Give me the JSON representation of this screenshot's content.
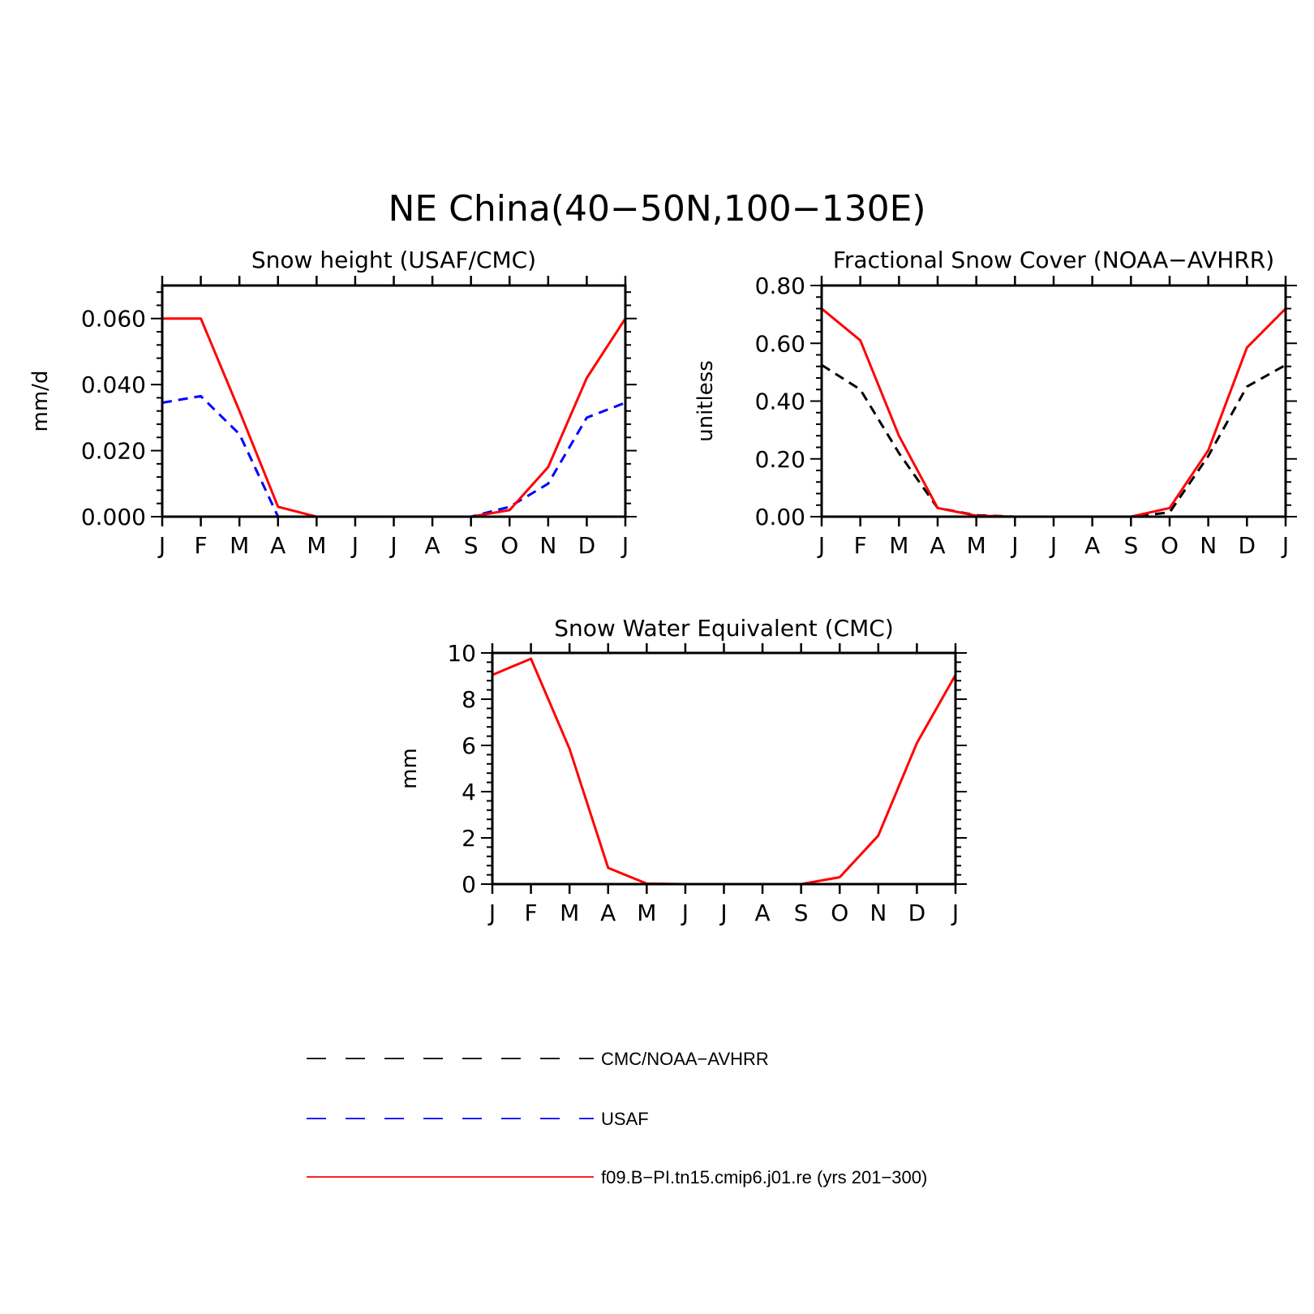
{
  "figure": {
    "title": "NE China(40−50N,100−130E)"
  },
  "legend": {
    "items": [
      {
        "label": "CMC/NOAA−AVHRR",
        "color": "#000000",
        "style": "dashed-long"
      },
      {
        "label": "USAF",
        "color": "#0000ff",
        "style": "dashed-long"
      },
      {
        "label": "f09.B−PI.tn15.cmip6.j01.re (yrs 201−300)",
        "color": "#ff0000",
        "style": "solid"
      }
    ]
  },
  "chart_data": [
    {
      "type": "line",
      "title": "Snow height (USAF/CMC)",
      "ylabel": "mm/d",
      "xlabel": "",
      "categories": [
        "J",
        "F",
        "M",
        "A",
        "M",
        "J",
        "J",
        "A",
        "S",
        "O",
        "N",
        "D",
        "J"
      ],
      "ylim": [
        0,
        0.07
      ],
      "yticks": [
        0,
        0.02,
        0.04,
        0.06
      ],
      "ytick_labels": [
        "0.000",
        "0.020",
        "0.040",
        "0.060"
      ],
      "grid": false,
      "series": [
        {
          "name": "CMC/NOAA−AVHRR",
          "color": "#000000",
          "dash": "dashed",
          "values": [
            0,
            0,
            0,
            0,
            0,
            0,
            0,
            0,
            0,
            0,
            0,
            0,
            0
          ]
        },
        {
          "name": "USAF",
          "color": "#0000ff",
          "dash": "dashed",
          "values": [
            0.0345,
            0.0365,
            0.025,
            0.0,
            0.0,
            0.0,
            0.0,
            0.0,
            0.0,
            0.003,
            0.01,
            0.03,
            0.0345
          ]
        },
        {
          "name": "f09.B−PI.tn15.cmip6.j01.re (yrs 201−300)",
          "color": "#ff0000",
          "dash": "solid",
          "values": [
            0.06,
            0.06,
            0.032,
            0.003,
            0.0,
            0.0,
            0.0,
            0.0,
            0.0,
            0.002,
            0.015,
            0.042,
            0.06
          ]
        }
      ]
    },
    {
      "type": "line",
      "title": "Fractional Snow Cover (NOAA−AVHRR)",
      "ylabel": "unitless",
      "xlabel": "",
      "categories": [
        "J",
        "F",
        "M",
        "A",
        "M",
        "J",
        "J",
        "A",
        "S",
        "O",
        "N",
        "D",
        "J"
      ],
      "ylim": [
        0,
        0.8
      ],
      "yticks": [
        0,
        0.2,
        0.4,
        0.6,
        0.8
      ],
      "ytick_labels": [
        "0.00",
        "0.20",
        "0.40",
        "0.60",
        "0.80"
      ],
      "grid": false,
      "series": [
        {
          "name": "CMC/NOAA−AVHRR",
          "color": "#000000",
          "dash": "dashed",
          "values": [
            0.525,
            0.44,
            0.22,
            0.03,
            0.005,
            0,
            0,
            0,
            0,
            0.015,
            0.21,
            0.45,
            0.525
          ]
        },
        {
          "name": "f09.B−PI.tn15.cmip6.j01.re (yrs 201−300)",
          "color": "#ff0000",
          "dash": "solid",
          "values": [
            0.72,
            0.61,
            0.28,
            0.03,
            0.003,
            0,
            0,
            0,
            0,
            0.03,
            0.23,
            0.585,
            0.72
          ]
        }
      ]
    },
    {
      "type": "line",
      "title": "Snow Water Equivalent (CMC)",
      "ylabel": "mm",
      "xlabel": "",
      "categories": [
        "J",
        "F",
        "M",
        "A",
        "M",
        "J",
        "J",
        "A",
        "S",
        "O",
        "N",
        "D",
        "J"
      ],
      "ylim": [
        0,
        10
      ],
      "yticks": [
        0,
        2,
        4,
        6,
        8,
        10
      ],
      "ytick_labels": [
        "0",
        "2",
        "4",
        "6",
        "8",
        "10"
      ],
      "grid": false,
      "series": [
        {
          "name": "CMC/NOAA−AVHRR",
          "color": "#000000",
          "dash": "dashed",
          "values": [
            0,
            0,
            0,
            0,
            0,
            0,
            0,
            0,
            0,
            0,
            0,
            0,
            0
          ]
        },
        {
          "name": "f09.B−PI.tn15.cmip6.j01.re (yrs 201−300)",
          "color": "#ff0000",
          "dash": "solid",
          "values": [
            9.05,
            9.75,
            5.85,
            0.7,
            0.02,
            0,
            0,
            0,
            0,
            0.3,
            2.1,
            6.1,
            9.05
          ]
        }
      ]
    }
  ]
}
